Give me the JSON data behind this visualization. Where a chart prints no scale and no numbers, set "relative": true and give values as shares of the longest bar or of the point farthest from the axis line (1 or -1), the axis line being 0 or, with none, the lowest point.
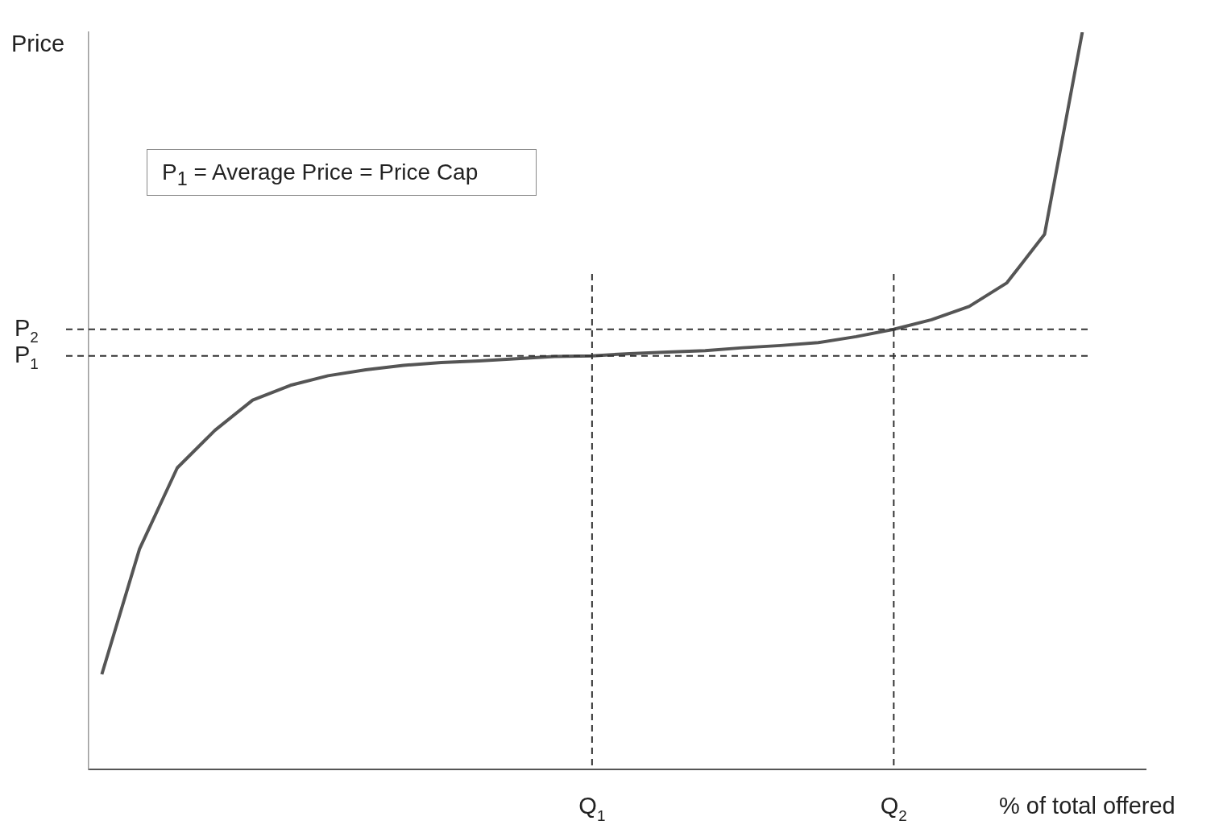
{
  "chart_data": {
    "type": "line",
    "relative": true,
    "xlabel": "% of total offered",
    "ylabel": "Price",
    "grid": false,
    "legend": false,
    "marker": "none",
    "line_style": "solid",
    "categories": [
      null,
      null,
      null,
      null,
      null,
      null,
      null,
      null,
      null,
      null,
      null,
      null,
      null,
      "Q$_{1}$",
      null,
      null,
      null,
      null,
      null,
      null,
      null,
      "Q$_{2}$",
      null,
      null,
      null,
      null,
      null
    ],
    "series": [
      {
        "color": "#555555",
        "values": [
          0.129,
          0.299,
          0.409,
          0.46,
          0.501,
          0.521,
          0.534,
          0.542,
          0.548,
          0.552,
          0.554,
          0.557,
          0.56,
          0.561,
          0.564,
          0.566,
          0.568,
          0.572,
          0.575,
          0.579,
          0.587,
          0.597,
          0.61,
          0.628,
          0.66,
          0.726,
          1.0
        ]
      }
    ],
    "ref_lines": [
      {
        "axis": "y",
        "value": 0.561,
        "label": "P$_{1}$",
        "line_style": "dashed",
        "color": "#333333"
      },
      {
        "axis": "y",
        "value": 0.597,
        "label": "P$_{2}$",
        "line_style": "dashed",
        "color": "#333333"
      },
      {
        "axis": "x",
        "value": "Q$_{1}$",
        "line_style": "dashed",
        "color": "#333333"
      },
      {
        "axis": "x",
        "value": "Q$_{2}$",
        "line_style": "dashed",
        "color": "#333333"
      }
    ],
    "annotations": [
      "P$_{1}$ = Average Price = Price Cap"
    ]
  }
}
